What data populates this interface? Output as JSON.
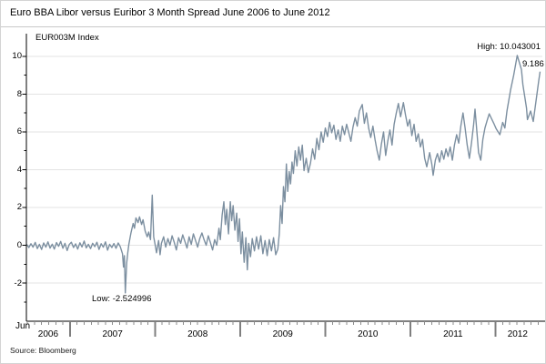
{
  "title": "Euro BBA Libor versus Euribor 3 Month Spread June 2006 to June 2012",
  "legend": "EUR003M Index",
  "source": "Source: Bloomberg",
  "annotations": {
    "high": "High: 10.043001",
    "low": "Low: -2.524996",
    "last": "9.186"
  },
  "colors": {
    "line": "#7c8fa0",
    "grid": "#e3e3e3",
    "axis": "#000000",
    "month_tick": "#8c8c8c",
    "year_separator": "#7f7f7f"
  },
  "chart_data": {
    "type": "line",
    "title": "Euro BBA Libor versus Euribor 3 Month Spread June 2006 to June 2012",
    "series_name": "EUR003M Index",
    "x_unit": "months since Jun 2006",
    "x_start_label": "Jun",
    "x_year_labels": [
      "2006",
      "2007",
      "2008",
      "2009",
      "2010",
      "2011",
      "2012"
    ],
    "x_year_boundaries_months": [
      7,
      19,
      31,
      43,
      55,
      67
    ],
    "x_months_total": 73.3,
    "y_ticks": [
      10,
      8,
      6,
      4,
      2,
      0,
      -2
    ],
    "y_minor_ticks": [
      9,
      7,
      5,
      3,
      1,
      -1,
      -3
    ],
    "ylim": [
      -4,
      11.2
    ],
    "grid": true,
    "high": 10.043001,
    "low": -2.524996,
    "last": 9.186,
    "points": [
      [
        0.9,
        0.05
      ],
      [
        1.2,
        -0.12
      ],
      [
        1.5,
        0.08
      ],
      [
        1.8,
        -0.1
      ],
      [
        2.1,
        0.15
      ],
      [
        2.4,
        -0.18
      ],
      [
        2.7,
        0.05
      ],
      [
        3.0,
        -0.22
      ],
      [
        3.3,
        0.12
      ],
      [
        3.6,
        -0.1
      ],
      [
        3.9,
        0.18
      ],
      [
        4.2,
        -0.15
      ],
      [
        4.5,
        0.06
      ],
      [
        4.8,
        -0.2
      ],
      [
        5.1,
        0.14
      ],
      [
        5.4,
        -0.06
      ],
      [
        5.7,
        0.2
      ],
      [
        6.0,
        -0.16
      ],
      [
        6.3,
        0.1
      ],
      [
        6.6,
        -0.28
      ],
      [
        6.9,
        0.04
      ],
      [
        7.2,
        0.16
      ],
      [
        7.5,
        -0.12
      ],
      [
        7.8,
        0.07
      ],
      [
        8.1,
        -0.2
      ],
      [
        8.4,
        0.13
      ],
      [
        8.7,
        -0.09
      ],
      [
        9.0,
        0.22
      ],
      [
        9.3,
        -0.14
      ],
      [
        9.6,
        0.05
      ],
      [
        9.9,
        -0.18
      ],
      [
        10.2,
        0.1
      ],
      [
        10.5,
        -0.07
      ],
      [
        10.8,
        0.16
      ],
      [
        11.1,
        -0.22
      ],
      [
        11.4,
        0.08
      ],
      [
        11.7,
        -0.1
      ],
      [
        12.0,
        0.18
      ],
      [
        12.3,
        -0.26
      ],
      [
        12.6,
        0.05
      ],
      [
        12.9,
        -0.12
      ],
      [
        13.2,
        0.09
      ],
      [
        13.5,
        -0.16
      ],
      [
        13.8,
        0.12
      ],
      [
        14.1,
        -0.08
      ],
      [
        14.4,
        -0.45
      ],
      [
        14.55,
        -1.15
      ],
      [
        14.68,
        -0.55
      ],
      [
        14.8,
        -2.524996
      ],
      [
        15.0,
        -0.95
      ],
      [
        15.15,
        -0.4
      ],
      [
        15.3,
        0.05
      ],
      [
        15.6,
        0.65
      ],
      [
        15.9,
        1.15
      ],
      [
        16.1,
        0.9
      ],
      [
        16.3,
        1.45
      ],
      [
        16.6,
        1.2
      ],
      [
        16.8,
        1.5
      ],
      [
        17.1,
        1.1
      ],
      [
        17.3,
        1.35
      ],
      [
        17.6,
        0.75
      ],
      [
        17.9,
        0.45
      ],
      [
        18.1,
        0.7
      ],
      [
        18.35,
        0.3
      ],
      [
        18.6,
        2.65
      ],
      [
        18.8,
        0.45
      ],
      [
        19.0,
        0.05
      ],
      [
        19.2,
        -0.4
      ],
      [
        19.5,
        0.25
      ],
      [
        19.7,
        -0.5
      ],
      [
        19.9,
        0.1
      ],
      [
        20.2,
        0.45
      ],
      [
        20.5,
        -0.1
      ],
      [
        20.8,
        0.35
      ],
      [
        21.1,
        0.0
      ],
      [
        21.4,
        0.5
      ],
      [
        21.7,
        0.15
      ],
      [
        22.0,
        -0.25
      ],
      [
        22.3,
        0.4
      ],
      [
        22.6,
        0.1
      ],
      [
        22.9,
        0.55
      ],
      [
        23.2,
        0.2
      ],
      [
        23.5,
        -0.15
      ],
      [
        23.8,
        0.45
      ],
      [
        24.1,
        0.05
      ],
      [
        24.4,
        0.6
      ],
      [
        24.7,
        0.25
      ],
      [
        25.0,
        -0.1
      ],
      [
        25.3,
        0.35
      ],
      [
        25.6,
        0.65
      ],
      [
        25.9,
        0.3
      ],
      [
        26.2,
        0.0
      ],
      [
        26.5,
        0.5
      ],
      [
        26.8,
        0.15
      ],
      [
        27.1,
        -0.25
      ],
      [
        27.4,
        0.3
      ],
      [
        27.7,
        0.0
      ],
      [
        28.0,
        0.9
      ],
      [
        28.2,
        0.3
      ],
      [
        28.45,
        1.6
      ],
      [
        28.7,
        2.3
      ],
      [
        28.9,
        1.1
      ],
      [
        29.1,
        1.9
      ],
      [
        29.35,
        0.6
      ],
      [
        29.6,
        2.3
      ],
      [
        29.8,
        1.3
      ],
      [
        30.0,
        2.1
      ],
      [
        30.25,
        0.8
      ],
      [
        30.5,
        1.7
      ],
      [
        30.7,
        0.2
      ],
      [
        30.9,
        1.4
      ],
      [
        31.1,
        -0.45
      ],
      [
        31.3,
        0.7
      ],
      [
        31.55,
        -0.9
      ],
      [
        31.8,
        0.4
      ],
      [
        32.0,
        -1.3
      ],
      [
        32.2,
        0.1
      ],
      [
        32.45,
        -0.6
      ],
      [
        32.7,
        0.35
      ],
      [
        33.0,
        -0.3
      ],
      [
        33.3,
        0.45
      ],
      [
        33.6,
        -0.2
      ],
      [
        33.9,
        0.5
      ],
      [
        34.2,
        -0.45
      ],
      [
        34.5,
        0.25
      ],
      [
        34.8,
        -0.55
      ],
      [
        35.1,
        0.3
      ],
      [
        35.4,
        -0.3
      ],
      [
        35.7,
        0.4
      ],
      [
        36.0,
        -0.5
      ],
      [
        36.3,
        -0.2
      ],
      [
        36.5,
        0.6
      ],
      [
        36.7,
        2.1
      ],
      [
        36.9,
        1.15
      ],
      [
        37.1,
        3.1
      ],
      [
        37.3,
        2.3
      ],
      [
        37.5,
        4.3
      ],
      [
        37.7,
        2.85
      ],
      [
        37.9,
        3.9
      ],
      [
        38.1,
        3.25
      ],
      [
        38.3,
        4.4
      ],
      [
        38.5,
        3.8
      ],
      [
        38.75,
        5.0
      ],
      [
        39.0,
        4.2
      ],
      [
        39.25,
        5.2
      ],
      [
        39.5,
        4.5
      ],
      [
        39.75,
        5.3
      ],
      [
        40.0,
        3.95
      ],
      [
        40.3,
        4.6
      ],
      [
        40.6,
        3.85
      ],
      [
        40.9,
        4.35
      ],
      [
        41.2,
        5.1
      ],
      [
        41.5,
        4.55
      ],
      [
        41.8,
        5.65
      ],
      [
        42.1,
        5.05
      ],
      [
        42.4,
        6.0
      ],
      [
        42.7,
        5.45
      ],
      [
        43.0,
        6.2
      ],
      [
        43.3,
        5.75
      ],
      [
        43.6,
        6.5
      ],
      [
        43.9,
        5.95
      ],
      [
        44.2,
        6.35
      ],
      [
        44.5,
        5.6
      ],
      [
        44.8,
        6.1
      ],
      [
        45.1,
        5.5
      ],
      [
        45.4,
        6.3
      ],
      [
        45.7,
        5.85
      ],
      [
        46.0,
        6.4
      ],
      [
        46.3,
        5.95
      ],
      [
        46.6,
        5.5
      ],
      [
        46.9,
        6.25
      ],
      [
        47.2,
        6.75
      ],
      [
        47.5,
        6.3
      ],
      [
        47.8,
        7.1
      ],
      [
        48.2,
        7.45
      ],
      [
        48.5,
        6.45
      ],
      [
        48.8,
        7.0
      ],
      [
        49.1,
        6.2
      ],
      [
        49.4,
        5.7
      ],
      [
        49.7,
        6.3
      ],
      [
        50.0,
        5.6
      ],
      [
        50.3,
        5.0
      ],
      [
        50.6,
        4.5
      ],
      [
        50.9,
        5.35
      ],
      [
        51.2,
        6.0
      ],
      [
        51.5,
        4.75
      ],
      [
        51.8,
        5.5
      ],
      [
        52.1,
        6.1
      ],
      [
        52.4,
        5.3
      ],
      [
        52.7,
        6.4
      ],
      [
        53.0,
        7.0
      ],
      [
        53.3,
        7.5
      ],
      [
        53.6,
        6.8
      ],
      [
        54.0,
        7.55
      ],
      [
        54.3,
        6.9
      ],
      [
        54.6,
        6.3
      ],
      [
        54.9,
        6.65
      ],
      [
        55.2,
        5.8
      ],
      [
        55.5,
        6.4
      ],
      [
        55.8,
        5.5
      ],
      [
        56.1,
        5.9
      ],
      [
        56.4,
        5.2
      ],
      [
        56.7,
        5.6
      ],
      [
        57.0,
        4.6
      ],
      [
        57.3,
        4.15
      ],
      [
        57.7,
        4.9
      ],
      [
        58.0,
        4.3
      ],
      [
        58.2,
        3.7
      ],
      [
        58.5,
        4.5
      ],
      [
        58.8,
        4.85
      ],
      [
        59.1,
        4.4
      ],
      [
        59.4,
        5.0
      ],
      [
        59.7,
        4.55
      ],
      [
        60.0,
        5.1
      ],
      [
        60.3,
        4.7
      ],
      [
        60.6,
        5.2
      ],
      [
        60.9,
        4.5
      ],
      [
        61.2,
        5.3
      ],
      [
        61.5,
        5.85
      ],
      [
        61.8,
        5.4
      ],
      [
        62.1,
        6.3
      ],
      [
        62.4,
        7.0
      ],
      [
        62.7,
        6.2
      ],
      [
        63.0,
        5.3
      ],
      [
        63.3,
        4.6
      ],
      [
        63.6,
        5.4
      ],
      [
        63.9,
        6.4
      ],
      [
        64.1,
        7.2
      ],
      [
        64.4,
        5.8
      ],
      [
        64.6,
        4.9
      ],
      [
        64.9,
        4.5
      ],
      [
        65.2,
        5.6
      ],
      [
        65.5,
        6.2
      ],
      [
        65.8,
        6.6
      ],
      [
        66.1,
        6.95
      ],
      [
        66.8,
        6.4
      ],
      [
        67.1,
        6.15
      ],
      [
        67.6,
        5.85
      ],
      [
        68.0,
        6.5
      ],
      [
        68.3,
        6.2
      ],
      [
        68.6,
        7.1
      ],
      [
        69.1,
        8.2
      ],
      [
        69.55,
        9.0
      ],
      [
        70.05,
        10.043001
      ],
      [
        70.64,
        9.3
      ],
      [
        70.85,
        8.5
      ],
      [
        71.36,
        7.25
      ],
      [
        71.48,
        6.65
      ],
      [
        71.93,
        7.1
      ],
      [
        72.31,
        6.55
      ],
      [
        72.76,
        7.8
      ],
      [
        73.07,
        8.7
      ],
      [
        73.27,
        9.186
      ]
    ]
  }
}
